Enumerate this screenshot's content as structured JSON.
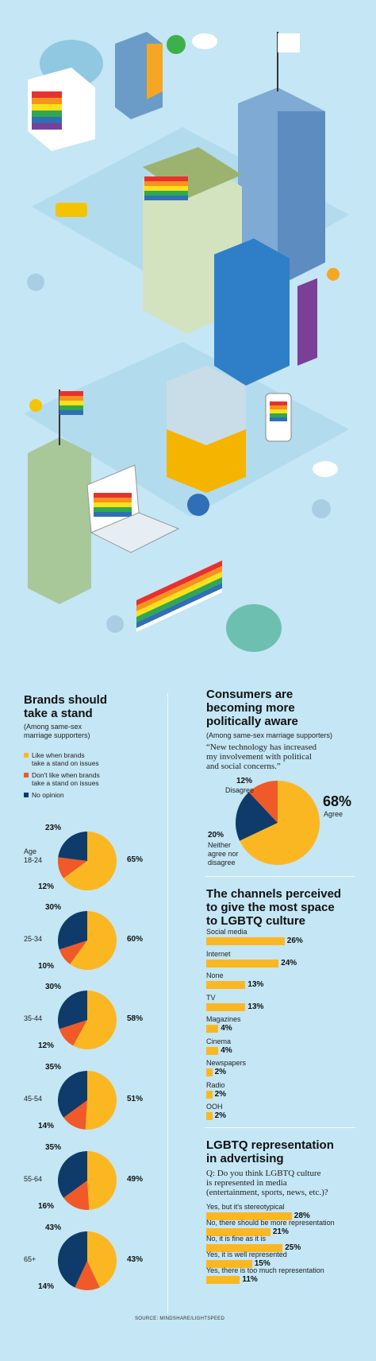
{
  "colors": {
    "like": "#fbb722",
    "dislike": "#ef5a28",
    "no_opinion": "#0e3b6a",
    "bar": "#fbb722",
    "background": "#c4e6f5"
  },
  "brands": {
    "title_line1": "Brands should",
    "title_line2": "take a stand",
    "subtitle_line1": "(Among same-sex",
    "subtitle_line2": "marriage supporters)",
    "legend": [
      {
        "line1": "Like when brands",
        "line2": "take a stand on issues"
      },
      {
        "line1": "Don't like when brands",
        "line2": "take a stand on issues"
      },
      {
        "line1": "No opinion",
        "line2": ""
      }
    ],
    "ages": [
      {
        "age_line1": "Age",
        "age_line2": "18-24",
        "like": "65%",
        "dislike": "12%",
        "no": "23%"
      },
      {
        "age_line1": "25-34",
        "age_line2": "",
        "like": "60%",
        "dislike": "10%",
        "no": "30%"
      },
      {
        "age_line1": "35-44",
        "age_line2": "",
        "like": "58%",
        "dislike": "12%",
        "no": "30%"
      },
      {
        "age_line1": "45-54",
        "age_line2": "",
        "like": "51%",
        "dislike": "14%",
        "no": "35%"
      },
      {
        "age_line1": "55-64",
        "age_line2": "",
        "like": "49%",
        "dislike": "16%",
        "no": "35%"
      },
      {
        "age_line1": "65+",
        "age_line2": "",
        "like": "43%",
        "dislike": "14%",
        "no": "43%"
      }
    ]
  },
  "consumers": {
    "title_line1": "Consumers are",
    "title_line2": "becoming more",
    "title_line3": "politically aware",
    "subtitle": "(Among same-sex marriage supporters)",
    "quote_line1": "“New technology has increased",
    "quote_line2": "my involvement with political",
    "quote_line3": "and social concerns.”",
    "agree_pct": "68%",
    "agree_label": "Agree",
    "disagree_pct": "12%",
    "disagree_label": "Disagree",
    "neither_pct": "20%",
    "neither_line1": "Neither",
    "neither_line2": "agree nor",
    "neither_line3": "disagree"
  },
  "channels": {
    "title_line1": "The channels perceived",
    "title_line2": "to give the most space",
    "title_line3": "to LGBTQ culture"
  },
  "representation": {
    "title_line1": "LGBTQ representation",
    "title_line2": "in advertising",
    "question_line1": "Q: Do you think LGBTQ culture",
    "question_line2": "is represented in media",
    "question_line3": "(entertainment, sports, news, etc.)?"
  },
  "source": "SOURCE: MINDSHARE/LIGHTSPEED",
  "chart_data": [
    {
      "type": "pie",
      "title": "Brands should take a stand",
      "series": [
        {
          "name": "Age 18-24",
          "labels": [
            "Like when brands take a stand on issues",
            "Don't like when brands take a stand on issues",
            "No opinion"
          ],
          "values": [
            65,
            12,
            23
          ]
        },
        {
          "name": "25-34",
          "labels": [
            "Like when brands take a stand on issues",
            "Don't like when brands take a stand on issues",
            "No opinion"
          ],
          "values": [
            60,
            10,
            30
          ]
        },
        {
          "name": "35-44",
          "labels": [
            "Like when brands take a stand on issues",
            "Don't like when brands take a stand on issues",
            "No opinion"
          ],
          "values": [
            58,
            12,
            30
          ]
        },
        {
          "name": "45-54",
          "labels": [
            "Like when brands take a stand on issues",
            "Don't like when brands take a stand on issues",
            "No opinion"
          ],
          "values": [
            51,
            14,
            35
          ]
        },
        {
          "name": "55-64",
          "labels": [
            "Like when brands take a stand on issues",
            "Don't like when brands take a stand on issues",
            "No opinion"
          ],
          "values": [
            49,
            16,
            35
          ]
        },
        {
          "name": "65+",
          "labels": [
            "Like when brands take a stand on issues",
            "Don't like when brands take a stand on issues",
            "No opinion"
          ],
          "values": [
            43,
            14,
            43
          ]
        }
      ]
    },
    {
      "type": "pie",
      "title": "Consumers are becoming more politically aware",
      "labels": [
        "Agree",
        "Disagree",
        "Neither agree nor disagree"
      ],
      "values": [
        68,
        12,
        20
      ]
    },
    {
      "type": "bar",
      "title": "The channels perceived to give the most space to LGBTQ culture",
      "categories": [
        "Social media",
        "Internet",
        "None",
        "TV",
        "Magazines",
        "Cinema",
        "Newspapers",
        "Radio",
        "OOH"
      ],
      "values": [
        26,
        24,
        13,
        13,
        4,
        4,
        2,
        2,
        2
      ],
      "value_labels": [
        "26%",
        "24%",
        "13%",
        "13%",
        "4%",
        "4%",
        "2%",
        "2%",
        "2%"
      ]
    },
    {
      "type": "bar",
      "title": "LGBTQ representation in advertising",
      "categories": [
        "Yes, but it's stereotypical",
        "No, there should be more representation",
        "No, it is fine as it is",
        "Yes, it is well represented",
        "Yes, there is too much representation"
      ],
      "values": [
        28,
        21,
        25,
        15,
        11
      ],
      "value_labels": [
        "28%",
        "21%",
        "25%",
        "15%",
        "11%"
      ]
    }
  ]
}
